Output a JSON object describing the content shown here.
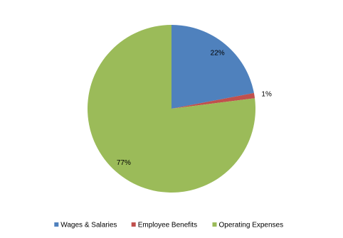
{
  "chart_data": {
    "type": "pie",
    "categories": [
      "Wages & Salaries",
      "Employee Benefits",
      "Operating Expenses"
    ],
    "values": [
      22,
      1,
      77
    ],
    "value_labels": [
      "22%",
      "1%",
      "77%"
    ],
    "colors": [
      "#4f81bd",
      "#c0504d",
      "#9bbb59"
    ],
    "legend": "bottom"
  }
}
